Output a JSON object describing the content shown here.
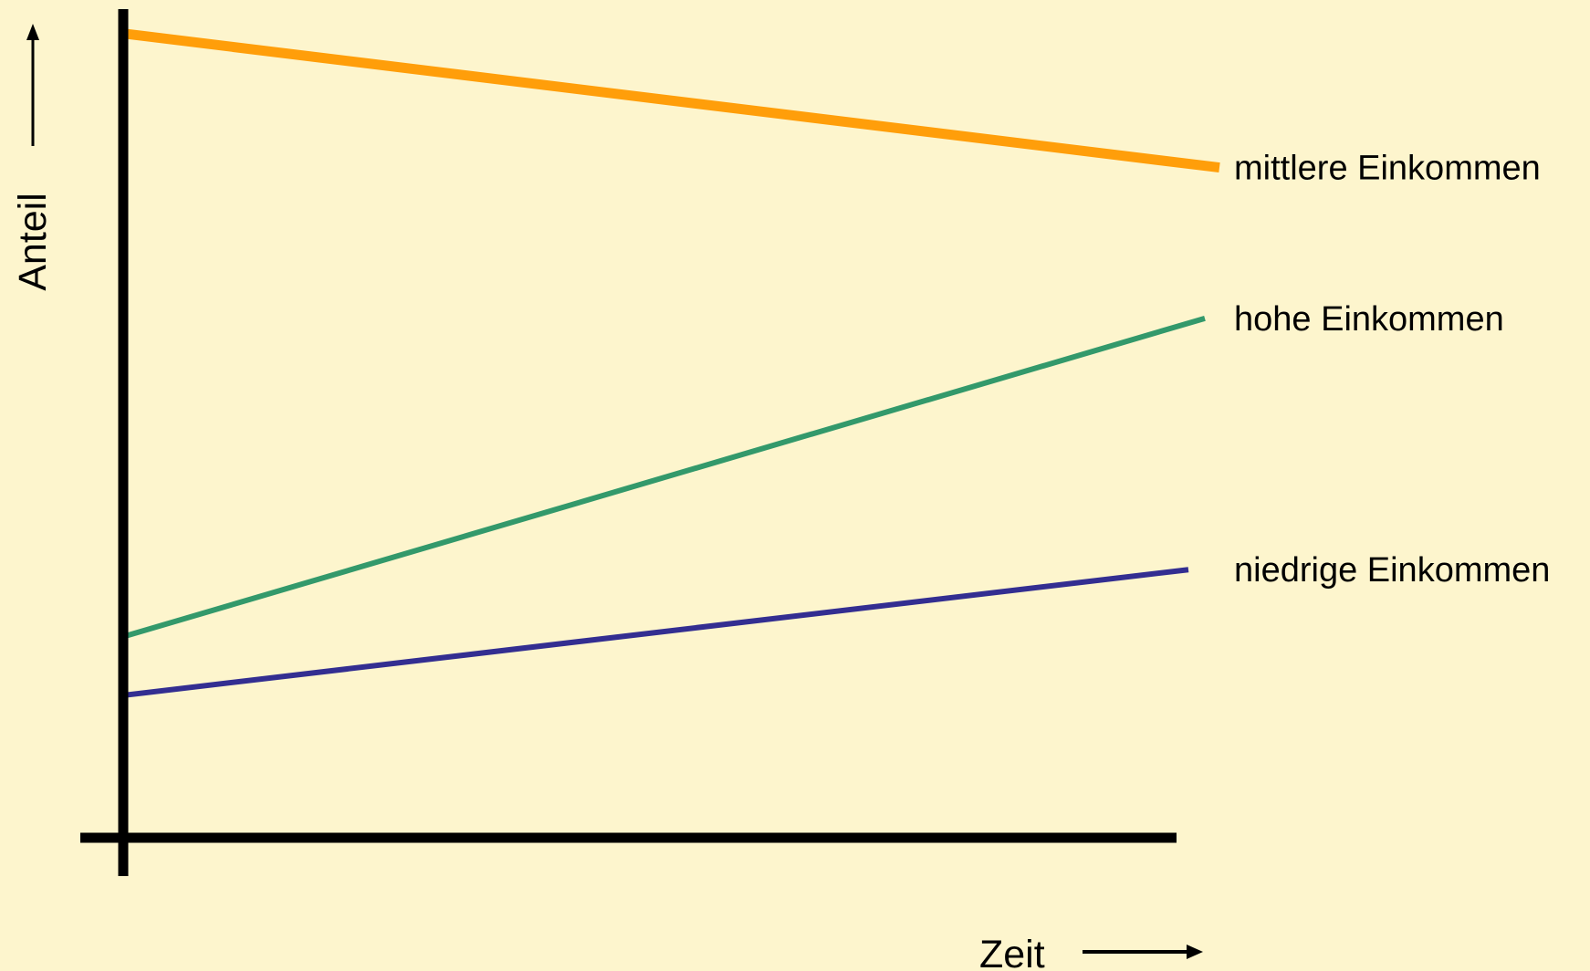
{
  "chart_data": {
    "type": "line",
    "xlabel": "Zeit",
    "ylabel": "Anteil",
    "x": [
      "start",
      "end"
    ],
    "grid": false,
    "tick_labels": false,
    "series": [
      {
        "name": "mittlere Einkommen",
        "values": [
          0.96,
          0.8
        ],
        "color": "#ff9e0a"
      },
      {
        "name": "hohe Einkommen",
        "values": [
          0.24,
          0.62
        ],
        "color": "#33996b"
      },
      {
        "name": "niedrige Einkommen",
        "values": [
          0.17,
          0.32
        ],
        "color": "#332e91"
      }
    ],
    "ylim": [
      0,
      1
    ],
    "axis_color": "#000000",
    "background_color": "#fdf5cd"
  }
}
